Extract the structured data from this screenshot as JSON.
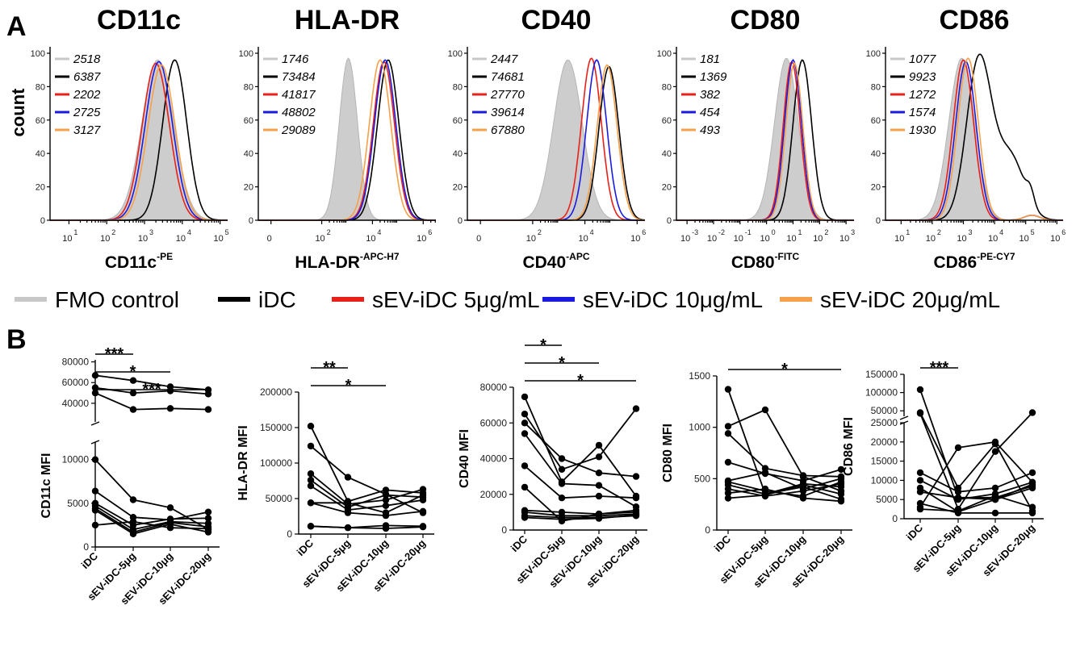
{
  "panel_labels": {
    "a": "A",
    "b": "B"
  },
  "legend": [
    {
      "label": "FMO control",
      "color": "#c8c8c8"
    },
    {
      "label": "iDC",
      "color": "#000000"
    },
    {
      "label": "sEV-iDC 5μg/mL",
      "color": "#e8201a"
    },
    {
      "label": "sEV-iDC 10μg/mL",
      "color": "#1b1be0"
    },
    {
      "label": "sEV-iDC 20μg/mL",
      "color": "#f5a04a"
    }
  ],
  "chart_data": [
    {
      "type": "area",
      "title": "CD11c",
      "xlabel": "CD11c",
      "xlabel_sup": "-PE",
      "ylabel": "count",
      "ylim": [
        0,
        100
      ],
      "yticks": [
        "0",
        "20",
        "40",
        "60",
        "80",
        "100"
      ],
      "xtick_labels": [
        "10",
        "10",
        "10",
        "10",
        "10"
      ],
      "xtick_exps": [
        "1",
        "2",
        "3",
        "4",
        "5"
      ],
      "xlim": [
        0.5,
        5.2
      ],
      "xtick_positions": [
        1,
        2,
        3,
        4,
        5
      ],
      "series": [
        {
          "name": "FMO control",
          "mfi": "2518",
          "peak": 3.35,
          "width": 0.42,
          "height": 96
        },
        {
          "name": "iDC",
          "mfi": "6387",
          "peak": 3.8,
          "width": 0.32,
          "height": 96
        },
        {
          "name": "sEV-iDC 5μg/mL",
          "mfi": "2202",
          "peak": 3.3,
          "width": 0.36,
          "height": 94
        },
        {
          "name": "sEV-iDC 10μg/mL",
          "mfi": "2725",
          "peak": 3.38,
          "width": 0.36,
          "height": 95
        },
        {
          "name": "sEV-iDC 20μg/mL",
          "mfi": "3127",
          "peak": 3.45,
          "width": 0.36,
          "height": 93
        }
      ]
    },
    {
      "type": "area",
      "title": "HLA-DR",
      "xlabel": "HLA-DR",
      "xlabel_sup": "-APC-H7",
      "ylabel": "",
      "ylim": [
        0,
        100
      ],
      "yticks": [
        "0",
        "20",
        "40",
        "60",
        "80",
        "100"
      ],
      "xtick_labels": [
        "0",
        "10",
        "10",
        "10"
      ],
      "xtick_exps": [
        "",
        "2",
        "4",
        "6"
      ],
      "xlim": [
        -0.5,
        6.5
      ],
      "xtick_positions": [
        0,
        2,
        4,
        6
      ],
      "series": [
        {
          "name": "FMO control",
          "mfi": "1746",
          "peak": 3.05,
          "width": 0.36,
          "height": 97
        },
        {
          "name": "iDC",
          "mfi": "73484",
          "peak": 4.62,
          "width": 0.42,
          "height": 96
        },
        {
          "name": "sEV-iDC 5μg/mL",
          "mfi": "41817",
          "peak": 4.45,
          "width": 0.42,
          "height": 95
        },
        {
          "name": "sEV-iDC 10μg/mL",
          "mfi": "48802",
          "peak": 4.5,
          "width": 0.42,
          "height": 96
        },
        {
          "name": "sEV-iDC 20μg/mL",
          "mfi": "29089",
          "peak": 4.3,
          "width": 0.42,
          "height": 96
        }
      ]
    },
    {
      "type": "area",
      "title": "CD40",
      "xlabel": "CD40",
      "xlabel_sup": "-APC",
      "ylabel": "",
      "ylim": [
        0,
        100
      ],
      "yticks": [
        "0",
        "20",
        "40",
        "60",
        "80",
        "100"
      ],
      "xtick_labels": [
        "0",
        "10",
        "10",
        "10"
      ],
      "xtick_exps": [
        "",
        "2",
        "4",
        "6"
      ],
      "xlim": [
        -0.5,
        6.3
      ],
      "xtick_positions": [
        0,
        2,
        4,
        6
      ],
      "series": [
        {
          "name": "FMO control",
          "mfi": "2447",
          "peak": 3.35,
          "width": 0.55,
          "height": 96
        },
        {
          "name": "iDC",
          "mfi": "74681",
          "peak": 4.92,
          "width": 0.38,
          "height": 92
        },
        {
          "name": "sEV-iDC 5μg/mL",
          "mfi": "27770",
          "peak": 4.25,
          "width": 0.38,
          "height": 97
        },
        {
          "name": "sEV-iDC 10μg/mL",
          "mfi": "39614",
          "peak": 4.45,
          "width": 0.38,
          "height": 96
        },
        {
          "name": "sEV-iDC 20μg/mL",
          "mfi": "67880",
          "peak": 4.85,
          "width": 0.38,
          "height": 93
        }
      ]
    },
    {
      "type": "area",
      "title": "CD80",
      "xlabel": "CD80",
      "xlabel_sup": "-FITC",
      "ylabel": "",
      "ylim": [
        0,
        100
      ],
      "yticks": [
        "0",
        "20",
        "40",
        "60",
        "80",
        "100"
      ],
      "xtick_labels": [
        "10",
        "10",
        "10",
        "10",
        "10",
        "10",
        "10"
      ],
      "xtick_exps": [
        "-3",
        "-2",
        "-1",
        "0",
        "1",
        "2",
        "3"
      ],
      "xlim": [
        -3.4,
        3.3
      ],
      "xtick_positions": [
        -3,
        -2,
        -1,
        0,
        1,
        2,
        3
      ],
      "series": [
        {
          "name": "FMO control",
          "mfi": "181",
          "peak": 0.75,
          "width": 0.45,
          "height": 97
        },
        {
          "name": "iDC",
          "mfi": "1369",
          "peak": 1.35,
          "width": 0.35,
          "height": 96
        },
        {
          "name": "sEV-iDC 5μg/mL",
          "mfi": "382",
          "peak": 0.95,
          "width": 0.32,
          "height": 95
        },
        {
          "name": "sEV-iDC 10μg/mL",
          "mfi": "454",
          "peak": 1.0,
          "width": 0.32,
          "height": 96
        },
        {
          "name": "sEV-iDC 20μg/mL",
          "mfi": "493",
          "peak": 1.05,
          "width": 0.32,
          "height": 94
        }
      ]
    },
    {
      "type": "area",
      "title": "CD86",
      "xlabel": "CD86",
      "xlabel_sup": "-PE-CY7",
      "ylabel": "",
      "ylim": [
        0,
        100
      ],
      "yticks": [
        "0",
        "20",
        "40",
        "60",
        "80",
        "100"
      ],
      "xtick_labels": [
        "10",
        "10",
        "10",
        "10",
        "10",
        "10"
      ],
      "xtick_exps": [
        "1",
        "2",
        "3",
        "4",
        "5",
        "6"
      ],
      "xlim": [
        0.5,
        6.2
      ],
      "xtick_positions": [
        1,
        2,
        3,
        4,
        5,
        6
      ],
      "series": [
        {
          "name": "FMO control",
          "mfi": "1077",
          "peak": 2.95,
          "width": 0.42,
          "height": 97
        },
        {
          "name": "iDC",
          "mfi": "9923",
          "peak": 3.5,
          "width": 0.4,
          "height": 96
        },
        {
          "name": "sEV-iDC 5μg/mL",
          "mfi": "1272",
          "peak": 3.0,
          "width": 0.33,
          "height": 96
        },
        {
          "name": "sEV-iDC 10μg/mL",
          "mfi": "1574",
          "peak": 3.08,
          "width": 0.33,
          "height": 95
        },
        {
          "name": "sEV-iDC 20μg/mL",
          "mfi": "1930",
          "peak": 3.15,
          "width": 0.33,
          "height": 97
        }
      ]
    },
    {
      "type": "line",
      "ylabel": "CD11c MFI",
      "categories": [
        "iDC",
        "sEV-iDC-5μg",
        "sEV-iDC-10μg",
        "sEV-iDC-20μg"
      ],
      "y_broken": true,
      "lower_ylim": [
        0,
        12000
      ],
      "lower_yticks": [
        0,
        5000,
        10000
      ],
      "upper_ylim": [
        22000,
        82000
      ],
      "upper_yticks": [
        40000,
        60000,
        80000
      ],
      "donors": [
        [
          67000,
          62000,
          56000,
          53000
        ],
        [
          55000,
          50000,
          52000,
          49000
        ],
        [
          50000,
          34000,
          35000,
          34000
        ],
        [
          10000,
          5400,
          4500,
          2000
        ],
        [
          6400,
          3400,
          3100,
          4000
        ],
        [
          5000,
          2500,
          3200,
          3300
        ],
        [
          4700,
          2000,
          2900,
          2700
        ],
        [
          4400,
          1700,
          2800,
          2300
        ],
        [
          4200,
          1500,
          2600,
          1700
        ],
        [
          2500,
          2900,
          2200,
          2100
        ]
      ],
      "significance": [
        {
          "from": 0,
          "to": 1,
          "label": "***"
        },
        {
          "from": 0,
          "to": 2,
          "label": "*"
        },
        {
          "from": 0,
          "to": 3,
          "label": "***"
        }
      ]
    },
    {
      "type": "line",
      "ylabel": "HLA-DR MFI",
      "categories": [
        "iDC",
        "sEV-iDC-5μg",
        "sEV-iDC-10μg",
        "sEV-iDC-20μg"
      ],
      "ylim": [
        0,
        200000
      ],
      "yticks": [
        0,
        50000,
        100000,
        150000,
        200000
      ],
      "donors": [
        [
          152000,
          46000,
          62000,
          58000
        ],
        [
          124000,
          80000,
          56000,
          30000
        ],
        [
          85000,
          42000,
          48000,
          63000
        ],
        [
          76000,
          38000,
          55000,
          52000
        ],
        [
          68000,
          34000,
          40000,
          48000
        ],
        [
          44000,
          44000,
          30000,
          55000
        ],
        [
          44000,
          30000,
          26000,
          32000
        ],
        [
          11000,
          9000,
          12000,
          11000
        ],
        [
          11000,
          9000,
          8000,
          10000
        ]
      ],
      "significance": [
        {
          "from": 0,
          "to": 1,
          "label": "**"
        },
        {
          "from": 0,
          "to": 2,
          "label": "*"
        }
      ]
    },
    {
      "type": "line",
      "ylabel": "CD40 MFI",
      "categories": [
        "iDC",
        "sEV-iDC-5μg",
        "sEV-iDC-10μg",
        "sEV-iDC-20μg"
      ],
      "ylim": [
        0,
        80000
      ],
      "yticks": [
        0,
        20000,
        40000,
        60000,
        80000
      ],
      "donors": [
        [
          74600,
          27000,
          47500,
          19000
        ],
        [
          65000,
          34000,
          41000,
          68000
        ],
        [
          60000,
          40000,
          32000,
          30000
        ],
        [
          54000,
          26000,
          25000,
          13000
        ],
        [
          36000,
          18000,
          19000,
          18000
        ],
        [
          24000,
          5000,
          9000,
          11000
        ],
        [
          11000,
          10000,
          9000,
          10000
        ],
        [
          10000,
          8000,
          8000,
          9000
        ],
        [
          8000,
          7000,
          7000,
          8000
        ],
        [
          7000,
          6000,
          6500,
          8500
        ]
      ],
      "significance": [
        {
          "from": 0,
          "to": 1,
          "label": "*"
        },
        {
          "from": 0,
          "to": 2,
          "label": "*"
        },
        {
          "from": 0,
          "to": 3,
          "label": "*"
        }
      ]
    },
    {
      "type": "line",
      "ylabel": "CD80 MFI",
      "categories": [
        "iDC",
        "sEV-iDC-5μg",
        "sEV-iDC-10μg",
        "sEV-iDC-20μg"
      ],
      "ylim": [
        0,
        1500
      ],
      "yticks": [
        0,
        500,
        1000,
        1500
      ],
      "donors": [
        [
          1370,
          350,
          450,
          420
        ],
        [
          1010,
          1170,
          520,
          380
        ],
        [
          940,
          600,
          530,
          520
        ],
        [
          660,
          550,
          480,
          590
        ],
        [
          480,
          560,
          400,
          500
        ],
        [
          470,
          380,
          330,
          470
        ],
        [
          440,
          350,
          420,
          300
        ],
        [
          400,
          330,
          380,
          450
        ],
        [
          360,
          400,
          310,
          280
        ],
        [
          310,
          340,
          440,
          350
        ]
      ],
      "significance": [
        {
          "from": 0,
          "to": 3,
          "label": "*"
        }
      ]
    },
    {
      "type": "line",
      "ylabel": "CD86 MFI",
      "categories": [
        "iDC",
        "sEV-iDC-5μg",
        "sEV-iDC-10μg",
        "sEV-iDC-20μg"
      ],
      "y_broken": true,
      "lower_ylim": [
        0,
        25000
      ],
      "lower_yticks": [
        0,
        5000,
        10000,
        15000,
        20000,
        25000
      ],
      "upper_ylim": [
        35000,
        150000
      ],
      "upper_yticks": [
        50000,
        100000,
        150000
      ],
      "donors": [
        [
          108000,
          5500,
          5000,
          8000
        ],
        [
          45000,
          8000,
          19500,
          2000
        ],
        [
          43000,
          2500,
          17500,
          45000
        ],
        [
          12000,
          7000,
          8000,
          12000
        ],
        [
          10000,
          5000,
          6500,
          9500
        ],
        [
          8000,
          1800,
          5000,
          9000
        ],
        [
          7000,
          5500,
          5500,
          8500
        ],
        [
          4000,
          1500,
          1500,
          1500
        ],
        [
          3000,
          18500,
          20000,
          9500
        ],
        [
          2500,
          2000,
          6000,
          3000
        ]
      ],
      "significance": [
        {
          "from": 0,
          "to": 1,
          "label": "***"
        }
      ]
    }
  ]
}
